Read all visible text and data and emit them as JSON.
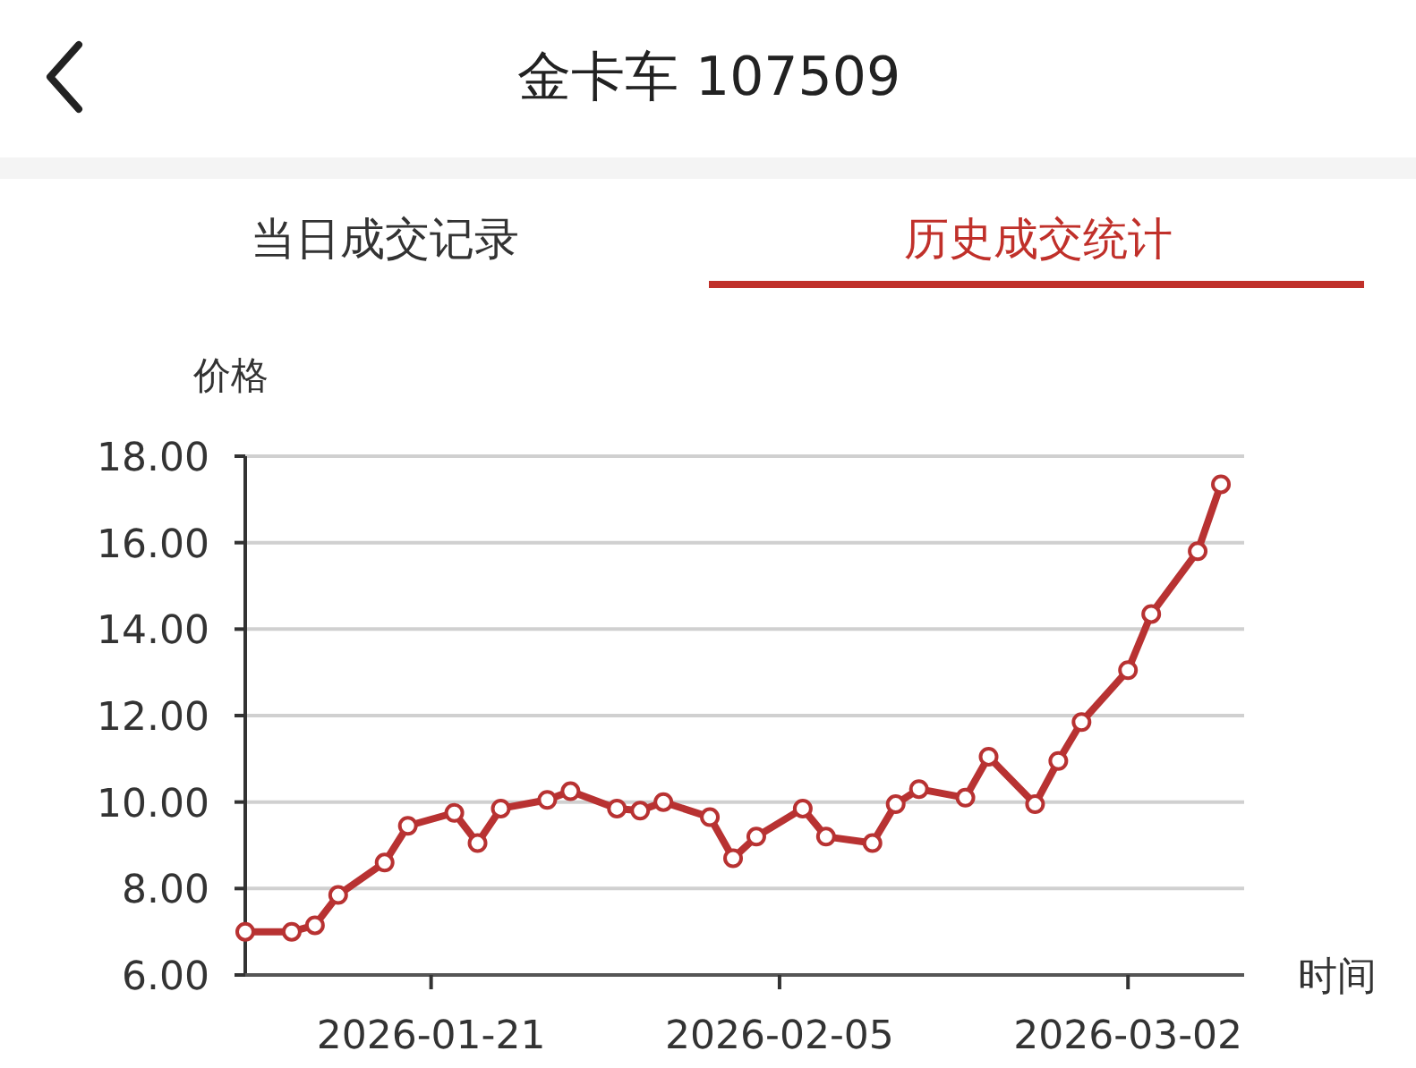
{
  "chart_data": {
    "type": "line",
    "title": "金卡车 107509",
    "annotations": [
      "当日成交记录",
      "历史成交统计"
    ],
    "ylabel": "价格",
    "xlabel": "时间",
    "x": [
      "2026-01-13",
      "2026-01-15",
      "2026-01-16",
      "2026-01-17",
      "2026-01-19",
      "2026-01-20",
      "2026-01-22",
      "2026-01-23",
      "2026-01-24",
      "2026-01-26",
      "2026-01-27",
      "2026-01-29",
      "2026-01-30",
      "2026-01-31",
      "2026-02-02",
      "2026-02-03",
      "2026-02-04",
      "2026-02-06",
      "2026-02-07",
      "2026-02-09",
      "2026-02-10",
      "2026-02-11",
      "2026-02-13",
      "2026-02-14",
      "2026-02-16",
      "2026-02-17",
      "2026-02-18",
      "2026-02-20",
      "2026-02-21",
      "2026-02-23",
      "2026-02-24"
    ],
    "series": [
      {
        "color": "#b83232",
        "values": [
          7.0,
          7.0,
          7.15,
          7.85,
          8.6,
          9.45,
          9.75,
          9.05,
          9.85,
          10.05,
          10.25,
          9.85,
          9.8,
          10.0,
          9.65,
          8.7,
          9.2,
          9.85,
          9.2,
          9.05,
          9.95,
          10.3,
          10.1,
          11.05,
          9.95,
          10.95,
          11.85,
          13.05,
          14.35,
          15.8,
          17.35
        ]
      }
    ],
    "xlim": [
      "2026-01-13",
      "2026-02-25"
    ],
    "xticks": [
      "2026-01-21",
      "2026-02-05",
      {
        "value": "2026-02-20",
        "label": "2026-03-02"
      }
    ],
    "ylim": [
      6,
      18
    ],
    "yticks": [
      {
        "value": 6,
        "label": "6.00"
      },
      {
        "value": 8,
        "label": "8.00"
      },
      {
        "value": 10,
        "label": "10.00"
      },
      {
        "value": 12,
        "label": "12.00"
      },
      {
        "value": 14,
        "label": "14.00"
      },
      {
        "value": 16,
        "label": "16.00"
      },
      {
        "value": 18,
        "label": "18.00"
      }
    ],
    "grid": "y",
    "marker": "circle",
    "line_style": "solid"
  }
}
